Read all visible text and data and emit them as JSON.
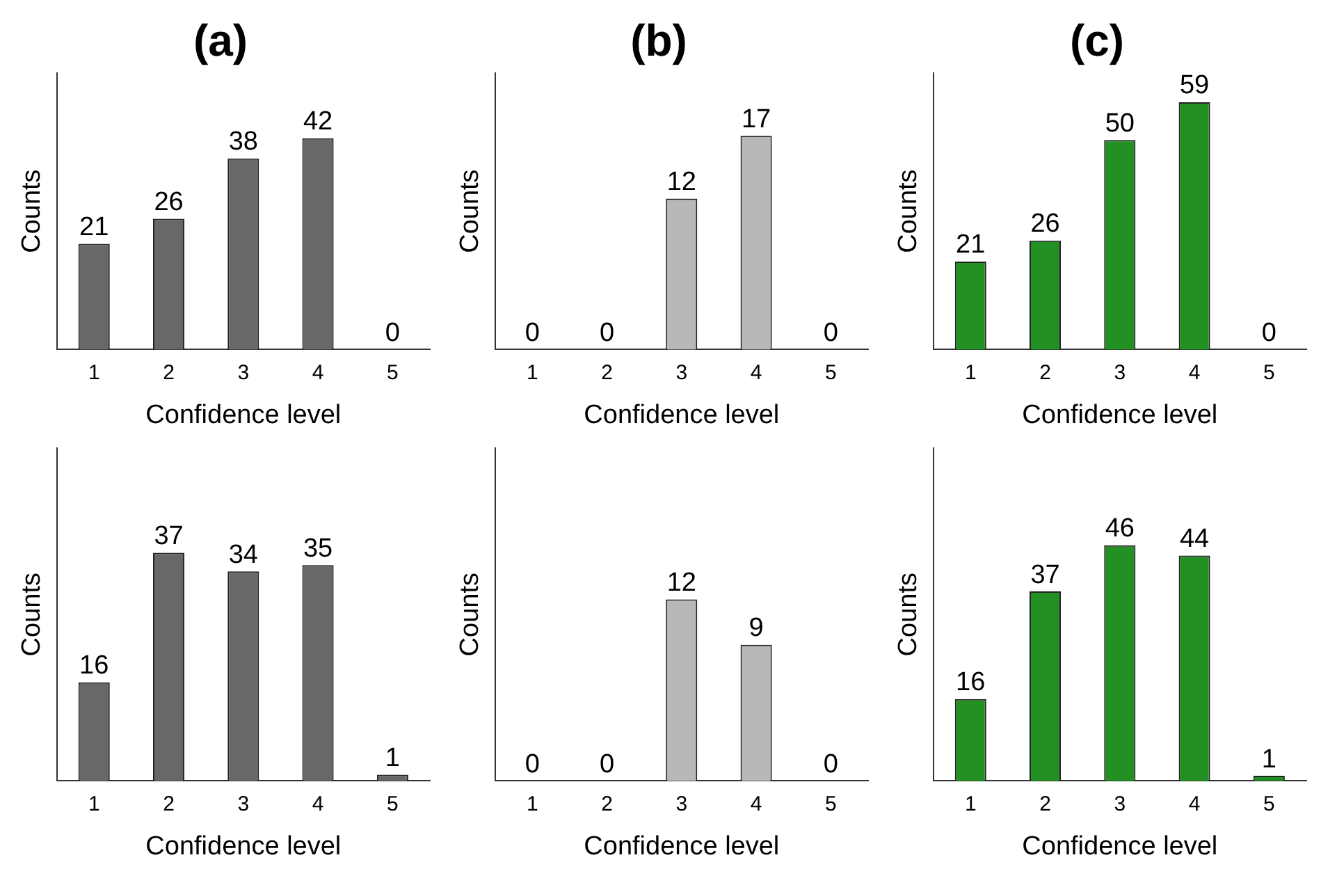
{
  "chart_data": [
    {
      "type": "bar",
      "title": "(a)",
      "xlabel": "Confidence level",
      "ylabel": "Counts",
      "categories": [
        "1",
        "2",
        "3",
        "4",
        "5"
      ],
      "values": [
        21,
        26,
        38,
        42,
        0
      ],
      "color": "#686868",
      "ylim": [
        0,
        55
      ],
      "data_labels": true,
      "tick_labels": "x",
      "grid": false
    },
    {
      "type": "bar",
      "title": "(b)",
      "xlabel": "Confidence level",
      "ylabel": "Counts",
      "categories": [
        "1",
        "2",
        "3",
        "4",
        "5"
      ],
      "values": [
        0,
        0,
        12,
        17,
        0
      ],
      "color": "#b8b8b8",
      "ylim": [
        0,
        22
      ],
      "data_labels": true,
      "tick_labels": "x",
      "grid": false
    },
    {
      "type": "bar",
      "title": "(c)",
      "xlabel": "Confidence level",
      "ylabel": "Counts",
      "categories": [
        "1",
        "2",
        "3",
        "4",
        "5"
      ],
      "values": [
        21,
        26,
        50,
        59,
        0
      ],
      "color": "#239023",
      "ylim": [
        0,
        66
      ],
      "data_labels": true,
      "tick_labels": "x",
      "grid": false
    },
    {
      "type": "bar",
      "xlabel": "Confidence level",
      "ylabel": "Counts",
      "categories": [
        "1",
        "2",
        "3",
        "4",
        "5"
      ],
      "values": [
        16,
        37,
        34,
        35,
        1
      ],
      "color": "#686868",
      "ylim": [
        0,
        54
      ],
      "data_labels": true,
      "tick_labels": "x",
      "grid": false
    },
    {
      "type": "bar",
      "xlabel": "Confidence level",
      "ylabel": "Counts",
      "categories": [
        "1",
        "2",
        "3",
        "4",
        "5"
      ],
      "values": [
        0,
        0,
        12,
        9,
        0
      ],
      "color": "#b8b8b8",
      "ylim": [
        0,
        22
      ],
      "data_labels": true,
      "tick_labels": "x",
      "grid": false
    },
    {
      "type": "bar",
      "xlabel": "Confidence level",
      "ylabel": "Counts",
      "categories": [
        "1",
        "2",
        "3",
        "4",
        "5"
      ],
      "values": [
        16,
        37,
        46,
        44,
        1
      ],
      "color": "#239023",
      "ylim": [
        0,
        65
      ],
      "data_labels": true,
      "tick_labels": "x",
      "grid": false
    }
  ]
}
